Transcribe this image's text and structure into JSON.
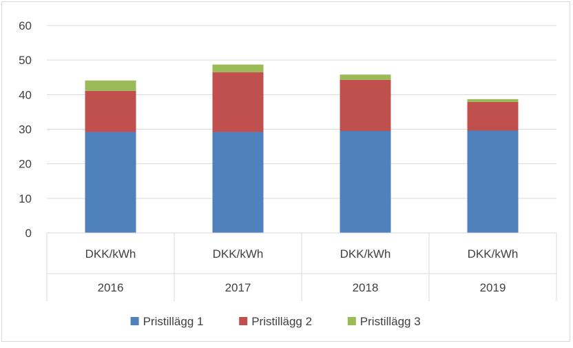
{
  "chart_data": {
    "type": "bar",
    "stacked": true,
    "categories": [
      {
        "label": "DKK/kWh",
        "group": "2016"
      },
      {
        "label": "DKK/kWh",
        "group": "2017"
      },
      {
        "label": "DKK/kWh",
        "group": "2018"
      },
      {
        "label": "DKK/kWh",
        "group": "2019"
      }
    ],
    "series": [
      {
        "name": "Pristillägg 1",
        "color": "#4f81bd",
        "values": [
          29.2,
          29.2,
          29.5,
          29.6
        ]
      },
      {
        "name": "Pristillägg 2",
        "color": "#c0504d",
        "values": [
          11.9,
          17.3,
          14.8,
          8.3
        ]
      },
      {
        "name": "Pristillägg 3",
        "color": "#9bbb59",
        "values": [
          3.0,
          2.2,
          1.5,
          0.8
        ]
      }
    ],
    "ylim": [
      0,
      60
    ],
    "yticks": [
      0,
      10,
      20,
      30,
      40,
      50,
      60
    ],
    "grid": true,
    "legend": "bottom"
  }
}
